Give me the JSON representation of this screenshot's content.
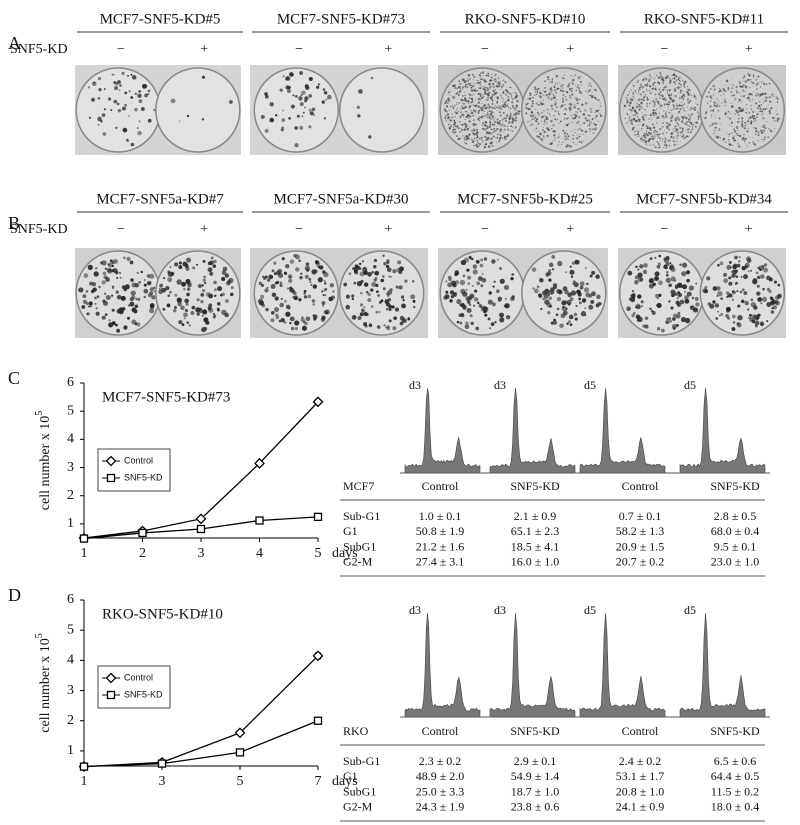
{
  "panels": {
    "a": {
      "letter": "A",
      "row_label": "SNF5-KD",
      "groups": [
        {
          "title": "MCF7-SNF5-KD#5",
          "signs": [
            "−",
            "+"
          ]
        },
        {
          "title": "MCF7-SNF5-KD#73",
          "signs": [
            "−",
            "+"
          ]
        },
        {
          "title": "RKO-SNF5-KD#10",
          "signs": [
            "−",
            "+"
          ]
        },
        {
          "title": "RKO-SNF5-KD#11",
          "signs": [
            "−",
            "+"
          ]
        }
      ]
    },
    "b": {
      "letter": "B",
      "row_label": "SNF5-KD",
      "groups": [
        {
          "title": "MCF7-SNF5a-KD#7",
          "signs": [
            "−",
            "+"
          ]
        },
        {
          "title": "MCF7-SNF5a-KD#30",
          "signs": [
            "−",
            "+"
          ]
        },
        {
          "title": "MCF7-SNF5b-KD#25",
          "signs": [
            "−",
            "+"
          ]
        },
        {
          "title": "MCF7-SNF5b-KD#34",
          "signs": [
            "−",
            "+"
          ]
        }
      ]
    },
    "c": {
      "letter": "C",
      "histogram_labels": [
        "d3",
        "d3",
        "d5",
        "d5"
      ],
      "table": {
        "header": [
          "MCF7",
          "Control",
          "SNF5-KD",
          "Control",
          "SNF5-KD"
        ],
        "rows": [
          [
            "Sub-G1",
            "1.0 ± 0.1",
            "2.1 ± 0.9",
            "0.7 ± 0.1",
            "2.8 ± 0.5"
          ],
          [
            "G1",
            "50.8 ± 1.9",
            "65.1 ± 2.3",
            "58.2 ± 1.3",
            "68.0 ± 0.4"
          ],
          [
            "SubG1",
            "21.2 ± 1.6",
            "18.5 ± 4.1",
            "20.9 ± 1.5",
            "9.5 ± 0.1"
          ],
          [
            "G2-M",
            "27.4 ± 3.1",
            "16.0 ± 1.0",
            "20.7 ± 0.2",
            "23.0 ± 1.0"
          ]
        ]
      }
    },
    "d": {
      "letter": "D",
      "histogram_labels": [
        "d3",
        "d3",
        "d5",
        "d5"
      ],
      "table": {
        "header": [
          "RKO",
          "Control",
          "SNF5-KD",
          "Control",
          "SNF5-KD"
        ],
        "rows": [
          [
            "Sub-G1",
            "2.3 ± 0.2",
            "2.9 ± 0.1",
            "2.4 ± 0.2",
            "6.5 ± 0.6"
          ],
          [
            "G1",
            "48.9 ± 2.0",
            "54.9 ± 1.4",
            "53.1 ± 1.7",
            "64.4 ± 0.5"
          ],
          [
            "SubG1",
            "25.0 ± 3.3",
            "18.7 ± 1.0",
            "20.8 ± 1.0",
            "11.5 ± 0.2"
          ],
          [
            "G2-M",
            "24.3 ± 1.9",
            "23.8 ± 0.6",
            "24.1 ± 0.9",
            "18.0 ± 0.4"
          ]
        ]
      }
    }
  },
  "chart_data": [
    {
      "type": "line",
      "title": "MCF7-SNF5-KD#73",
      "ylabel": "cell number x 10",
      "ylabel_exponent": "5",
      "xlabel": "days",
      "x": [
        1,
        2,
        3,
        4,
        5
      ],
      "xlim": [
        1,
        5
      ],
      "xticks": [
        1,
        2,
        3,
        4,
        5
      ],
      "ylim": [
        0.5,
        6
      ],
      "yticks": [
        1,
        2,
        3,
        4,
        5,
        6
      ],
      "legend": "upper left",
      "series": [
        {
          "name": "Control",
          "color": "#000000",
          "marker": "diamond",
          "values": [
            0.5,
            0.75,
            1.18,
            3.15,
            5.33
          ],
          "errors": [
            0.03,
            0.03,
            0.05,
            0.08,
            0.08
          ]
        },
        {
          "name": "SNF5-KD",
          "color": "#000000",
          "marker": "square",
          "values": [
            0.48,
            0.68,
            0.82,
            1.12,
            1.25
          ],
          "errors": [
            0.03,
            0.03,
            0.03,
            0.04,
            0.04
          ]
        }
      ]
    },
    {
      "type": "line",
      "title": "RKO-SNF5-KD#10",
      "ylabel": "cell number x 10",
      "ylabel_exponent": "5",
      "xlabel": "days",
      "x": [
        1,
        3,
        5,
        7
      ],
      "xlim": [
        1,
        7
      ],
      "xticks": [
        1,
        3,
        5,
        7
      ],
      "ylim": [
        0.5,
        6
      ],
      "yticks": [
        1,
        2,
        3,
        4,
        5,
        6
      ],
      "legend": "upper left",
      "series": [
        {
          "name": "Control",
          "color": "#000000",
          "marker": "diamond",
          "values": [
            0.48,
            0.62,
            1.6,
            4.15
          ],
          "errors": [
            0.02,
            0.03,
            0.05,
            0.1
          ]
        },
        {
          "name": "SNF5-KD",
          "color": "#000000",
          "marker": "square",
          "values": [
            0.48,
            0.58,
            0.95,
            2.0
          ],
          "errors": [
            0.02,
            0.03,
            0.03,
            0.04
          ]
        }
      ]
    }
  ]
}
